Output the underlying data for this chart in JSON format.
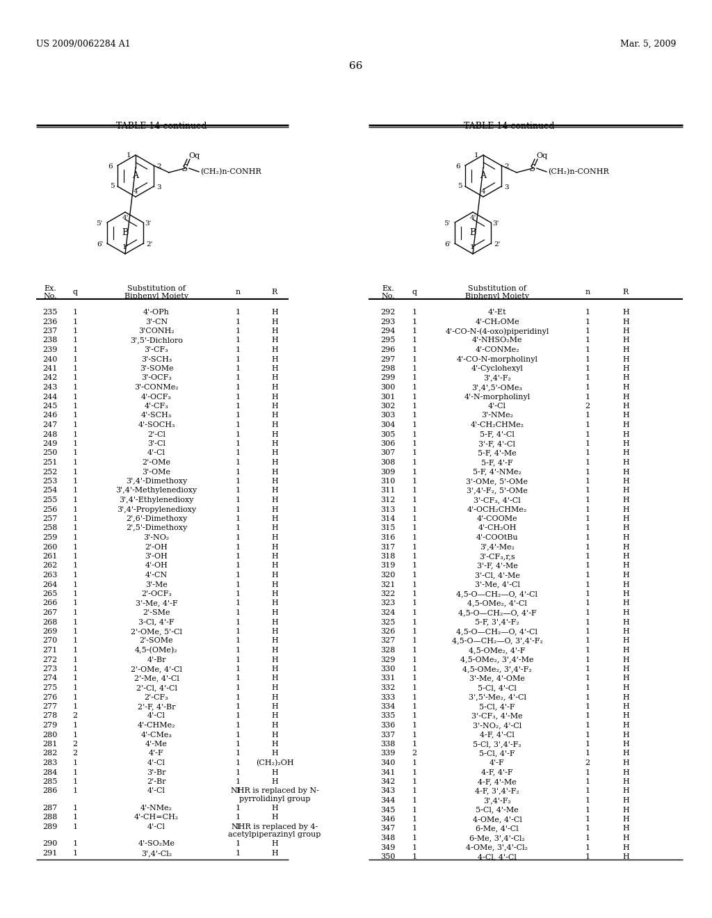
{
  "page_header_left": "US 2009/0062284 A1",
  "page_header_right": "Mar. 5, 2009",
  "page_number": "66",
  "table_title": "TABLE 14-continued",
  "bg_color": "#ffffff",
  "left_table": {
    "rows": [
      [
        "235",
        "1",
        "4'-OPh",
        "1",
        "H"
      ],
      [
        "236",
        "1",
        "3'-CN",
        "1",
        "H"
      ],
      [
        "237",
        "1",
        "3'CONH₂",
        "1",
        "H"
      ],
      [
        "238",
        "1",
        "3',5'-Dichloro",
        "1",
        "H"
      ],
      [
        "239",
        "1",
        "3'-CF₃",
        "1",
        "H"
      ],
      [
        "240",
        "1",
        "3'-SCH₃",
        "1",
        "H"
      ],
      [
        "241",
        "1",
        "3'-SOMe",
        "1",
        "H"
      ],
      [
        "242",
        "1",
        "3'-OCF₃",
        "1",
        "H"
      ],
      [
        "243",
        "1",
        "3'-CONMe₂",
        "1",
        "H"
      ],
      [
        "244",
        "1",
        "4'-OCF₃",
        "1",
        "H"
      ],
      [
        "245",
        "1",
        "4'-CF₃",
        "1",
        "H"
      ],
      [
        "246",
        "1",
        "4'-SCH₃",
        "1",
        "H"
      ],
      [
        "247",
        "1",
        "4'-SOCH₃",
        "1",
        "H"
      ],
      [
        "248",
        "1",
        "2'-Cl",
        "1",
        "H"
      ],
      [
        "249",
        "1",
        "3'-Cl",
        "1",
        "H"
      ],
      [
        "250",
        "1",
        "4'-Cl",
        "1",
        "H"
      ],
      [
        "251",
        "1",
        "2'-OMe",
        "1",
        "H"
      ],
      [
        "252",
        "1",
        "3'-OMe",
        "1",
        "H"
      ],
      [
        "253",
        "1",
        "3',4'-Dimethoxy",
        "1",
        "H"
      ],
      [
        "254",
        "1",
        "3',4'-Methylenedioxy",
        "1",
        "H"
      ],
      [
        "255",
        "1",
        "3',4'-Ethylenedioxy",
        "1",
        "H"
      ],
      [
        "256",
        "1",
        "3',4'-Propylenedioxy",
        "1",
        "H"
      ],
      [
        "257",
        "1",
        "2',6'-Dimethoxy",
        "1",
        "H"
      ],
      [
        "258",
        "1",
        "2',5'-Dimethoxy",
        "1",
        "H"
      ],
      [
        "259",
        "1",
        "3'-NO₂",
        "1",
        "H"
      ],
      [
        "260",
        "1",
        "2'-OH",
        "1",
        "H"
      ],
      [
        "261",
        "1",
        "3'-OH",
        "1",
        "H"
      ],
      [
        "262",
        "1",
        "4'-OH",
        "1",
        "H"
      ],
      [
        "263",
        "1",
        "4'-CN",
        "1",
        "H"
      ],
      [
        "264",
        "1",
        "3'-Me",
        "1",
        "H"
      ],
      [
        "265",
        "1",
        "2'-OCF₃",
        "1",
        "H"
      ],
      [
        "266",
        "1",
        "3'-Me, 4'-F",
        "1",
        "H"
      ],
      [
        "267",
        "1",
        "2'-SMe",
        "1",
        "H"
      ],
      [
        "268",
        "1",
        "3-Cl, 4'-F",
        "1",
        "H"
      ],
      [
        "269",
        "1",
        "2'-OMe, 5'-Cl",
        "1",
        "H"
      ],
      [
        "270",
        "1",
        "2'-SOMe",
        "1",
        "H"
      ],
      [
        "271",
        "1",
        "4,5-(OMe)₂",
        "1",
        "H"
      ],
      [
        "272",
        "1",
        "4'-Br",
        "1",
        "H"
      ],
      [
        "273",
        "1",
        "2'-OMe, 4'-Cl",
        "1",
        "H"
      ],
      [
        "274",
        "1",
        "2'-Me, 4'-Cl",
        "1",
        "H"
      ],
      [
        "275",
        "1",
        "2'-Cl, 4'-Cl",
        "1",
        "H"
      ],
      [
        "276",
        "1",
        "2'-CF₃",
        "1",
        "H"
      ],
      [
        "277",
        "1",
        "2'-F, 4'-Br",
        "1",
        "H"
      ],
      [
        "278",
        "2",
        "4'-Cl",
        "1",
        "H"
      ],
      [
        "279",
        "1",
        "4'-CHMe₂",
        "1",
        "H"
      ],
      [
        "280",
        "1",
        "4'-CMe₃",
        "1",
        "H"
      ],
      [
        "281",
        "2",
        "4'-Me",
        "1",
        "H"
      ],
      [
        "282",
        "2",
        "4'-F",
        "1",
        "H"
      ],
      [
        "283",
        "1",
        "4'-Cl",
        "1",
        "(CH₂)₂OH"
      ],
      [
        "284",
        "1",
        "3'-Br",
        "1",
        "H"
      ],
      [
        "285",
        "1",
        "2'-Br",
        "1",
        "H"
      ],
      [
        "286",
        "1",
        "4'-Cl",
        "1",
        "NHR is replaced by N-\npyrrolidinyl group"
      ],
      [
        "287",
        "1",
        "4'-NMe₂",
        "1",
        "H"
      ],
      [
        "288",
        "1",
        "4'-CH=CH₂",
        "1",
        "H"
      ],
      [
        "289",
        "1",
        "4'-Cl",
        "1",
        "NHR is replaced by 4-\nacetylpiperazinyl group"
      ],
      [
        "290",
        "1",
        "4'-SO₂Me",
        "1",
        "H"
      ],
      [
        "291",
        "1",
        "3',4'-Cl₂",
        "1",
        "H"
      ]
    ]
  },
  "right_table": {
    "rows": [
      [
        "292",
        "1",
        "4'-Et",
        "1",
        "H"
      ],
      [
        "293",
        "1",
        "4'-CH₂OMe",
        "1",
        "H"
      ],
      [
        "294",
        "1",
        "4'-CO-N-(4-oxo)piperidinyl",
        "1",
        "H"
      ],
      [
        "295",
        "1",
        "4'-NHSO₂Me",
        "1",
        "H"
      ],
      [
        "296",
        "1",
        "4'-CONMe₂",
        "1",
        "H"
      ],
      [
        "297",
        "1",
        "4'-CO-N-morpholinyl",
        "1",
        "H"
      ],
      [
        "298",
        "1",
        "4'-Cyclohexyl",
        "1",
        "H"
      ],
      [
        "299",
        "1",
        "3',4'-F₂",
        "1",
        "H"
      ],
      [
        "300",
        "1",
        "3',4',5'-OMe₃",
        "1",
        "H"
      ],
      [
        "301",
        "1",
        "4'-N-morpholinyl",
        "1",
        "H"
      ],
      [
        "302",
        "1",
        "4'-Cl",
        "2",
        "H"
      ],
      [
        "303",
        "1",
        "3'-NMe₂",
        "1",
        "H"
      ],
      [
        "304",
        "1",
        "4'-CH₂CHMe₂",
        "1",
        "H"
      ],
      [
        "305",
        "1",
        "5-F, 4'-Cl",
        "1",
        "H"
      ],
      [
        "306",
        "1",
        "3'-F, 4'-Cl",
        "1",
        "H"
      ],
      [
        "307",
        "1",
        "5-F, 4'-Me",
        "1",
        "H"
      ],
      [
        "308",
        "1",
        "5-F, 4'-F",
        "1",
        "H"
      ],
      [
        "309",
        "1",
        "5-F, 4'-NMe₂",
        "1",
        "H"
      ],
      [
        "310",
        "1",
        "3'-OMe, 5'-OMe",
        "1",
        "H"
      ],
      [
        "311",
        "1",
        "3',4'-F₂, 5'-OMe",
        "1",
        "H"
      ],
      [
        "312",
        "1",
        "3'-CF₃, 4'-Cl",
        "1",
        "H"
      ],
      [
        "313",
        "1",
        "4'-OCH₂CHMe₂",
        "1",
        "H"
      ],
      [
        "314",
        "1",
        "4'-COOMe",
        "1",
        "H"
      ],
      [
        "315",
        "1",
        "4'-CH₂OH",
        "1",
        "H"
      ],
      [
        "316",
        "1",
        "4'-COOtBu",
        "1",
        "H"
      ],
      [
        "317",
        "1",
        "3',4'-Me₂",
        "1",
        "H"
      ],
      [
        "318",
        "1",
        "3'-CF₃,r,s",
        "1",
        "H"
      ],
      [
        "319",
        "1",
        "3'-F, 4'-Me",
        "1",
        "H"
      ],
      [
        "320",
        "1",
        "3'-Cl, 4'-Me",
        "1",
        "H"
      ],
      [
        "321",
        "1",
        "3'-Me, 4'-Cl",
        "1",
        "H"
      ],
      [
        "322",
        "1",
        "4,5-O—CH₂—O, 4'-Cl",
        "1",
        "H"
      ],
      [
        "323",
        "1",
        "4,5-OMe₂, 4'-Cl",
        "1",
        "H"
      ],
      [
        "324",
        "1",
        "4,5-O—CH₂—O, 4'-F",
        "1",
        "H"
      ],
      [
        "325",
        "1",
        "5-F, 3',4'-F₂",
        "1",
        "H"
      ],
      [
        "326",
        "1",
        "4,5-O—CH₂—O, 4'-Cl",
        "1",
        "H"
      ],
      [
        "327",
        "1",
        "4,5-O—CH₂—O, 3',4'-F₂",
        "1",
        "H"
      ],
      [
        "328",
        "1",
        "4,5-OMe₂, 4'-F",
        "1",
        "H"
      ],
      [
        "329",
        "1",
        "4,5-OMe₂, 3',4'-Me",
        "1",
        "H"
      ],
      [
        "330",
        "1",
        "4,5-OMe₂, 3',4'-F₂",
        "1",
        "H"
      ],
      [
        "331",
        "1",
        "3'-Me, 4'-OMe",
        "1",
        "H"
      ],
      [
        "332",
        "1",
        "5-Cl, 4'-Cl",
        "1",
        "H"
      ],
      [
        "333",
        "1",
        "3',5'-Me₂, 4'-Cl",
        "1",
        "H"
      ],
      [
        "334",
        "1",
        "5-Cl, 4'-F",
        "1",
        "H"
      ],
      [
        "335",
        "1",
        "3'-CF₃, 4'-Me",
        "1",
        "H"
      ],
      [
        "336",
        "1",
        "3'-NO₂, 4'-Cl",
        "1",
        "H"
      ],
      [
        "337",
        "1",
        "4-F, 4'-Cl",
        "1",
        "H"
      ],
      [
        "338",
        "1",
        "5-Cl, 3',4'-F₂",
        "1",
        "H"
      ],
      [
        "339",
        "2",
        "5-Cl, 4'-F",
        "1",
        "H"
      ],
      [
        "340",
        "1",
        "4'-F",
        "2",
        "H"
      ],
      [
        "341",
        "1",
        "4-F, 4'-F",
        "1",
        "H"
      ],
      [
        "342",
        "1",
        "4-F, 4'-Me",
        "1",
        "H"
      ],
      [
        "343",
        "1",
        "4-F, 3',4'-F₂",
        "1",
        "H"
      ],
      [
        "344",
        "1",
        "3',4'-F₂",
        "1",
        "H"
      ],
      [
        "345",
        "1",
        "5-Cl, 4'-Me",
        "1",
        "H"
      ],
      [
        "346",
        "1",
        "4-OMe, 4'-Cl",
        "1",
        "H"
      ],
      [
        "347",
        "1",
        "6-Me, 4'-Cl",
        "1",
        "H"
      ],
      [
        "348",
        "1",
        "6-Me, 3',4'-Cl₂",
        "1",
        "H"
      ],
      [
        "349",
        "1",
        "4-OMe, 3',4'-Cl₂",
        "1",
        "H"
      ],
      [
        "350",
        "1",
        "4-Cl, 4'-Cl",
        "1",
        "H"
      ]
    ]
  }
}
